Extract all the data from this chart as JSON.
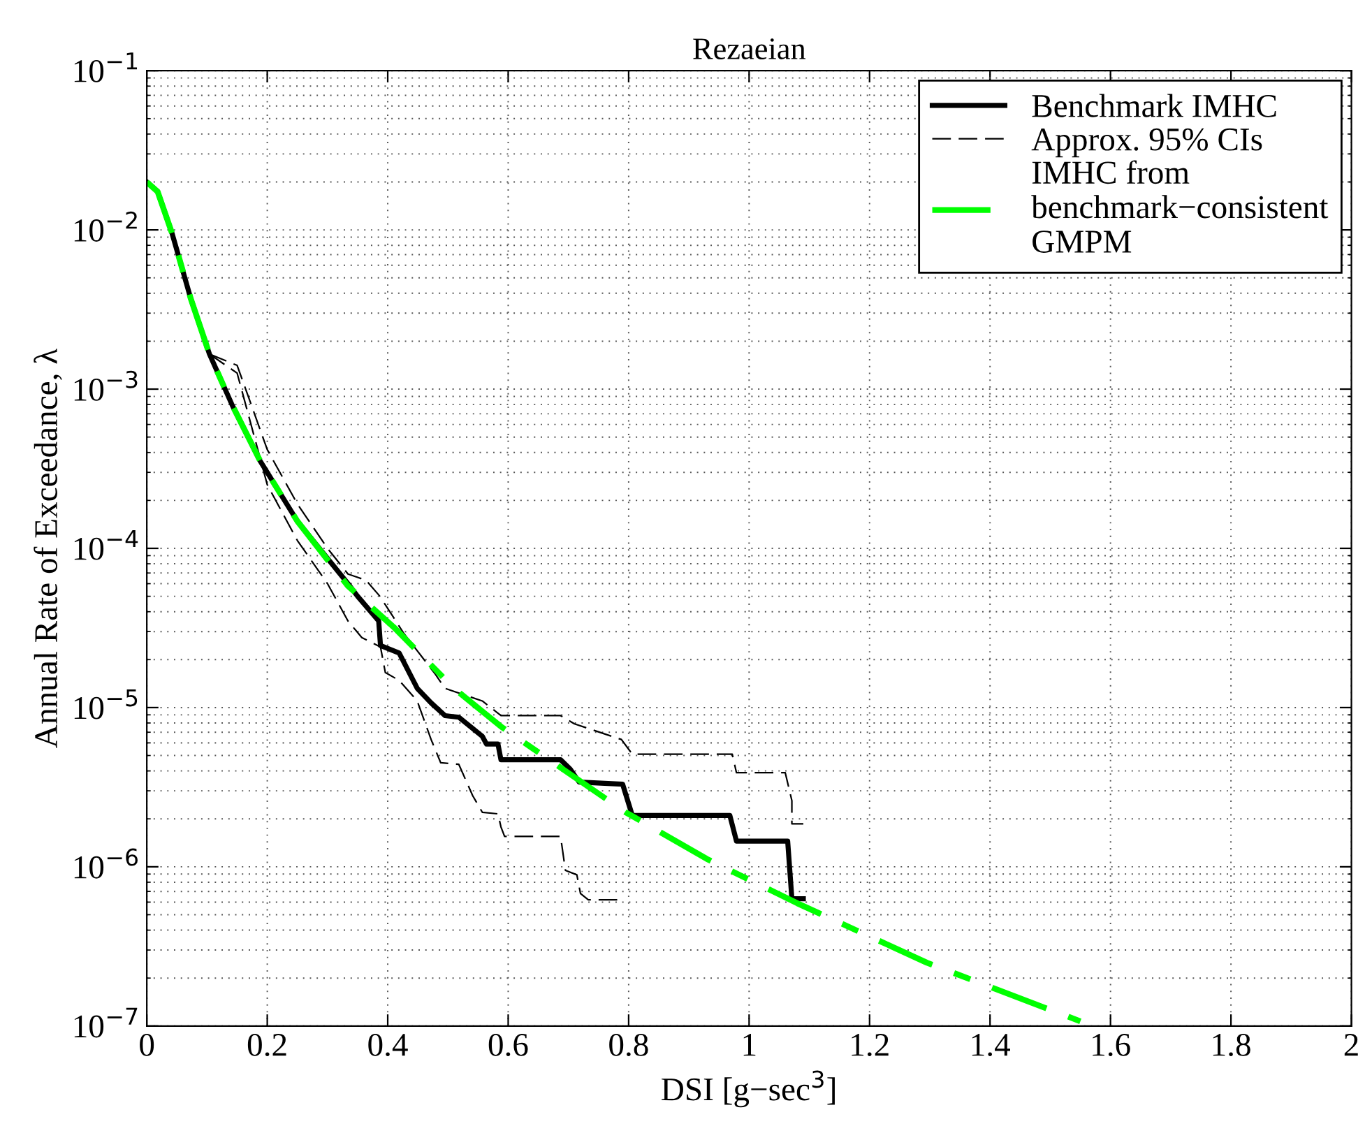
{
  "chart_data": {
    "type": "line",
    "title": "Rezaeian",
    "xlabel": "DSI [g−sec$^{3}$]",
    "ylabel": "Annual Rate of Exceedance, λ",
    "log": "y",
    "xlim": [
      0,
      2
    ],
    "xticks": [
      0,
      0.2,
      0.4,
      0.6,
      0.8,
      1,
      1.2,
      1.4,
      1.6,
      1.8,
      2
    ],
    "ylim": [
      1e-07,
      0.1
    ],
    "yticks": [
      {
        "value": 1e-07,
        "label": "10$^{−7}$"
      },
      {
        "value": 1e-06,
        "label": "10$^{−6}$"
      },
      {
        "value": 1e-05,
        "label": "10$^{−5}$"
      },
      {
        "value": 0.0001,
        "label": "10$^{−4}$"
      },
      {
        "value": 0.001,
        "label": "10$^{−3}$"
      },
      {
        "value": 0.01,
        "label": "10$^{−2}$"
      },
      {
        "value": 0.1,
        "label": "10$^{−1}$"
      }
    ],
    "grid": true,
    "legend": "top right",
    "marker": "none",
    "series": [
      {
        "name": "Benchmark IMHC",
        "color": "#000000",
        "line_style": "solid",
        "x": [
          0,
          0.018,
          0.042,
          0.073,
          0.104,
          0.142,
          0.188,
          0.25,
          0.334,
          0.35,
          0.385,
          0.388,
          0.419,
          0.449,
          0.472,
          0.495,
          0.518,
          0.557,
          0.564,
          0.583,
          0.588,
          0.687,
          0.703,
          0.718,
          0.79,
          0.806,
          0.968,
          0.979,
          1.064,
          1.071,
          1.09
        ],
        "values": [
          0.02,
          0.0174,
          0.0095,
          0.0037,
          0.00166,
          0.00079,
          0.000355,
          0.000148,
          6e-05,
          5e-05,
          3.5e-05,
          2.45e-05,
          2.2e-05,
          1.32e-05,
          1.07e-05,
          8.9e-06,
          8.7e-06,
          6.6e-06,
          5.9e-06,
          5.9e-06,
          4.7e-06,
          4.7e-06,
          4.1e-06,
          3.4e-06,
          3.3e-06,
          2.1e-06,
          2.1e-06,
          1.45e-06,
          1.45e-06,
          6.3e-07,
          6.3e-07
        ]
      },
      {
        "name": "Approx. 95% CIs",
        "color": "#000000",
        "line_style": "dashed",
        "x": [
          0,
          0.018,
          0.042,
          0.073,
          0.104,
          0.15,
          0.2,
          0.25,
          0.3,
          0.334,
          0.364,
          0.387,
          0.426,
          0.479,
          0.495,
          0.557,
          0.588,
          0.687,
          0.71,
          0.788,
          0.806,
          0.972,
          0.979,
          1.06,
          1.071,
          1.071,
          1.09
        ],
        "values": [
          0.02,
          0.0174,
          0.0095,
          0.0037,
          0.00166,
          0.00141,
          0.000417,
          0.00019,
          0.0001,
          6.9e-05,
          6.3e-05,
          5e-05,
          2.95e-05,
          1.62e-05,
          1.32e-05,
          1.1e-05,
          8.9e-06,
          8.9e-06,
          7.9e-06,
          6.3e-06,
          5.1e-06,
          5.1e-06,
          3.9e-06,
          3.9e-06,
          2.6e-06,
          1.86e-06,
          1.86e-06
        ]
      },
      {
        "color": "#000000",
        "line_style": "dashed",
        "x": [
          0,
          0.018,
          0.042,
          0.073,
          0.104,
          0.15,
          0.2,
          0.25,
          0.3,
          0.334,
          0.357,
          0.388,
          0.396,
          0.419,
          0.449,
          0.472,
          0.488,
          0.518,
          0.541,
          0.557,
          0.583,
          0.588,
          0.594,
          0.687,
          0.695,
          0.714,
          0.72,
          0.733,
          0.788
        ],
        "values": [
          0.02,
          0.0174,
          0.0095,
          0.0037,
          0.00166,
          0.00126,
          0.000251,
          0.000112,
          6e-05,
          3.5e-05,
          2.75e-05,
          2.4e-05,
          1.66e-05,
          1.48e-05,
          1.1e-05,
          6.3e-06,
          4.5e-06,
          4.4e-06,
          2.8e-06,
          2.2e-06,
          2.15e-06,
          1.78e-06,
          1.55e-06,
          1.55e-06,
          9.5e-07,
          8.9e-07,
          6.8e-07,
          6.2e-07,
          6.2e-07
        ]
      },
      {
        "name": "IMHC from\nbenchmark−consistent\nGMPM",
        "color": "#00ff00",
        "line_style": "dashdot",
        "x": [
          0,
          0.018,
          0.042,
          0.073,
          0.104,
          0.142,
          0.188,
          0.25,
          0.334,
          0.41,
          0.51,
          0.588,
          0.695,
          0.795,
          0.93,
          1.08,
          1.295,
          1.55
        ],
        "values": [
          0.02,
          0.0174,
          0.0095,
          0.0037,
          0.00166,
          0.00079,
          0.000355,
          0.000148,
          5.8e-05,
          3.2e-05,
          1.32e-05,
          7.6e-06,
          4e-06,
          2.2e-06,
          1.12e-06,
          5.9e-07,
          2.5e-07,
          1.07e-07
        ]
      }
    ]
  }
}
